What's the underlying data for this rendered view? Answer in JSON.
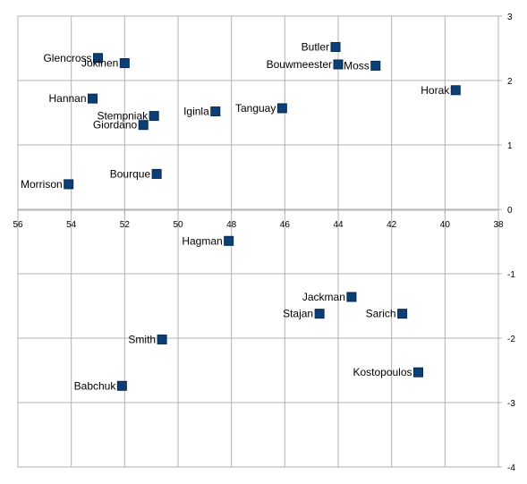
{
  "chart_data": {
    "type": "scatter",
    "title": "",
    "xlabel": "",
    "ylabel": "",
    "x_reversed": true,
    "xlim": [
      38,
      56
    ],
    "ylim": [
      -4,
      3
    ],
    "x_ticks": [
      56,
      54,
      52,
      50,
      48,
      46,
      44,
      42,
      40,
      38
    ],
    "y_ticks": [
      3,
      2,
      1,
      0,
      -1,
      -2,
      -3,
      -4
    ],
    "grid": true,
    "marker": "square",
    "marker_color": "#0b3f75",
    "points": [
      {
        "label": "Glencross",
        "x": 53.0,
        "y": 2.35
      },
      {
        "label": "Jokinen",
        "x": 52.0,
        "y": 2.27
      },
      {
        "label": "Butler",
        "x": 44.1,
        "y": 2.52
      },
      {
        "label": "Bouwmeester",
        "x": 44.0,
        "y": 2.25
      },
      {
        "label": "Moss",
        "x": 42.6,
        "y": 2.23
      },
      {
        "label": "Horak",
        "x": 39.6,
        "y": 1.85
      },
      {
        "label": "Hannan",
        "x": 53.2,
        "y": 1.72
      },
      {
        "label": "Stempniak",
        "x": 50.9,
        "y": 1.45
      },
      {
        "label": "Giordano",
        "x": 51.3,
        "y": 1.31
      },
      {
        "label": "Iginla",
        "x": 48.6,
        "y": 1.52
      },
      {
        "label": "Tanguay",
        "x": 46.1,
        "y": 1.57
      },
      {
        "label": "Bourque",
        "x": 50.8,
        "y": 0.55
      },
      {
        "label": "Morrison",
        "x": 54.1,
        "y": 0.39
      },
      {
        "label": "Hagman",
        "x": 48.1,
        "y": -0.49
      },
      {
        "label": "Jackman",
        "x": 43.5,
        "y": -1.36
      },
      {
        "label": "Stajan",
        "x": 44.7,
        "y": -1.62
      },
      {
        "label": "Sarich",
        "x": 41.6,
        "y": -1.62
      },
      {
        "label": "Smith",
        "x": 50.6,
        "y": -2.02
      },
      {
        "label": "Kostopoulos",
        "x": 41.0,
        "y": -2.53
      },
      {
        "label": "Babchuk",
        "x": 52.1,
        "y": -2.74
      }
    ]
  }
}
